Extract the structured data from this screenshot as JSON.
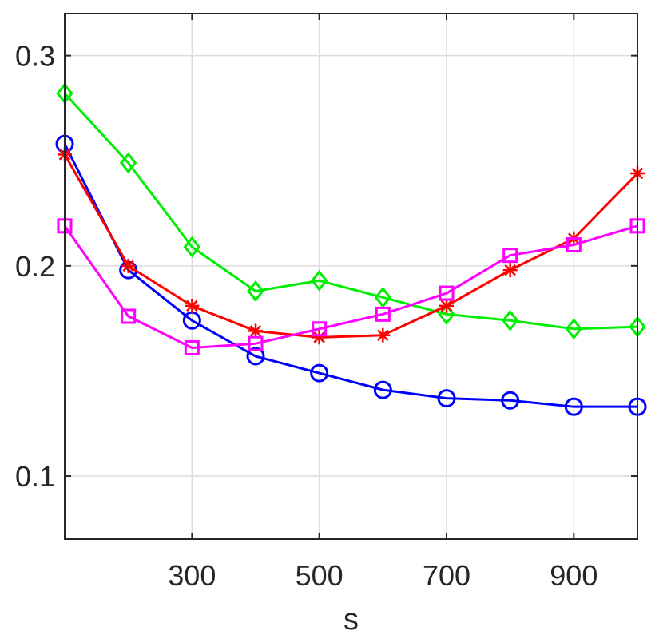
{
  "chart_data": {
    "type": "line",
    "title": "",
    "xlabel": "s",
    "ylabel": "",
    "xlim": [
      100,
      1000
    ],
    "ylim": [
      0.07,
      0.32
    ],
    "x_ticks": [
      300,
      500,
      700,
      900
    ],
    "y_ticks": [
      0.1,
      0.2,
      0.3
    ],
    "x_tick_labels": [
      "300",
      "500",
      "700",
      "900"
    ],
    "y_tick_labels": [
      "0.1",
      "0.2",
      "0.3"
    ],
    "grid": true,
    "legend": "none",
    "x": [
      100,
      200,
      300,
      400,
      500,
      600,
      700,
      800,
      900,
      1000
    ],
    "series": [
      {
        "color": "#0000ff",
        "marker": "circle",
        "values": [
          0.258,
          0.198,
          0.174,
          0.157,
          0.149,
          0.141,
          0.137,
          0.136,
          0.133,
          0.133
        ]
      },
      {
        "color": "#00ee00",
        "marker": "diamond",
        "values": [
          0.282,
          0.249,
          0.209,
          0.188,
          0.193,
          0.185,
          0.177,
          0.174,
          0.17,
          0.171
        ]
      },
      {
        "color": "#ff0000",
        "marker": "asterisk",
        "values": [
          0.253,
          0.2,
          0.181,
          0.169,
          0.166,
          0.167,
          0.181,
          0.198,
          0.213,
          0.244
        ]
      },
      {
        "color": "#ff00ff",
        "marker": "square",
        "values": [
          0.219,
          0.176,
          0.161,
          0.163,
          0.17,
          0.177,
          0.187,
          0.205,
          0.21,
          0.219
        ]
      }
    ]
  }
}
